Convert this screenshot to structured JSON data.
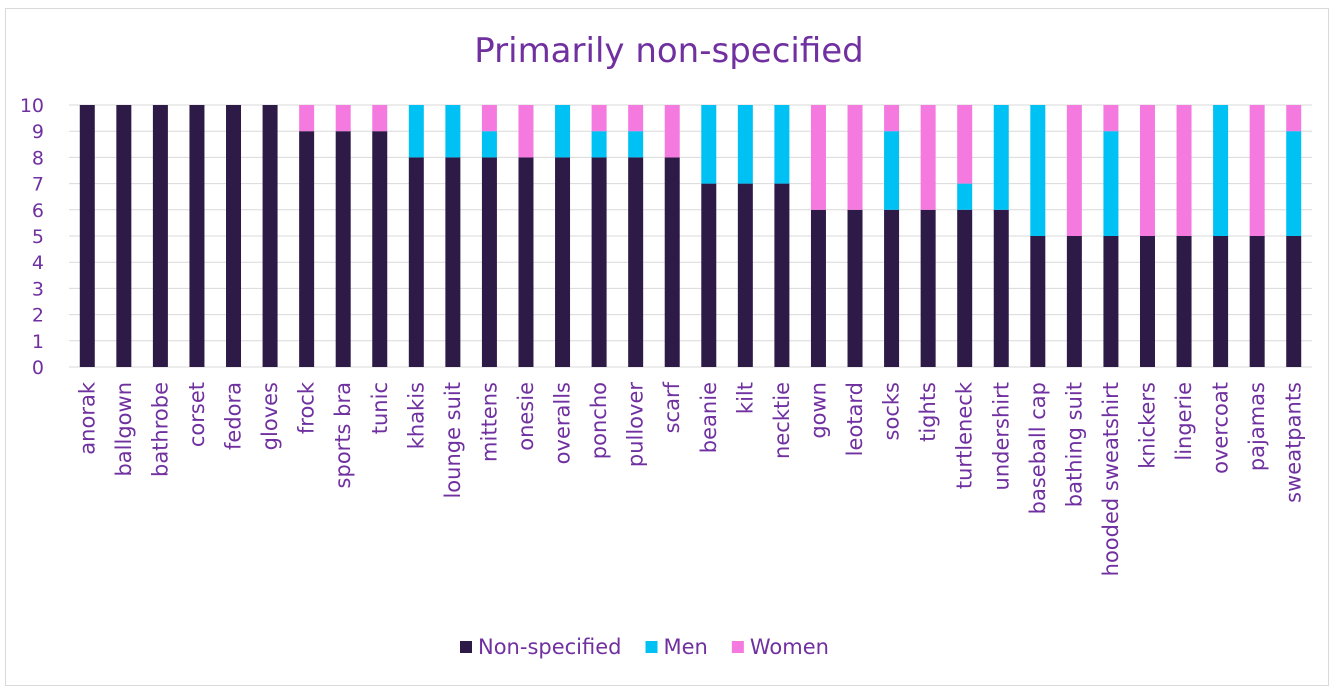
{
  "chart_data": {
    "type": "bar",
    "stacked": true,
    "title": "Primarily non-specified",
    "xlabel": "",
    "ylabel": "",
    "ylim": [
      0,
      10
    ],
    "yticks": [
      0,
      1,
      2,
      3,
      4,
      5,
      6,
      7,
      8,
      9,
      10
    ],
    "grid": true,
    "legend_position": "bottom",
    "categories": [
      "anorak",
      "ballgown",
      "bathrobe",
      "corset",
      "fedora",
      "gloves",
      "frock",
      "sports bra",
      "tunic",
      "khakis",
      "lounge suit",
      "mittens",
      "onesie",
      "overalls",
      "poncho",
      "pullover",
      "scarf",
      "beanie",
      "kilt",
      "necktie",
      "gown",
      "leotard",
      "socks",
      "tights",
      "turtleneck",
      "undershirt",
      "baseball cap",
      "bathing suit",
      "hooded sweatshirt",
      "knickers",
      "lingerie",
      "overcoat",
      "pajamas",
      "sweatpants"
    ],
    "series": [
      {
        "name": "Non-specified",
        "color": "#2e1a47",
        "values": [
          10,
          10,
          10,
          10,
          10,
          10,
          9,
          9,
          9,
          8,
          8,
          8,
          8,
          8,
          8,
          8,
          8,
          7,
          7,
          7,
          6,
          6,
          6,
          6,
          6,
          6,
          5,
          5,
          5,
          5,
          5,
          5,
          5,
          5
        ]
      },
      {
        "name": "Men",
        "color": "#00c1f3",
        "values": [
          0,
          0,
          0,
          0,
          0,
          0,
          0,
          0,
          0,
          2,
          2,
          1,
          0,
          2,
          1,
          1,
          0,
          3,
          3,
          3,
          0,
          0,
          3,
          0,
          1,
          4,
          5,
          0,
          4,
          0,
          0,
          5,
          0,
          4
        ]
      },
      {
        "name": "Women",
        "color": "#f57ae0",
        "values": [
          0,
          0,
          0,
          0,
          0,
          0,
          1,
          1,
          1,
          0,
          0,
          1,
          2,
          0,
          1,
          1,
          2,
          0,
          0,
          0,
          4,
          4,
          1,
          4,
          3,
          0,
          0,
          5,
          1,
          5,
          5,
          0,
          5,
          1
        ]
      }
    ],
    "colors": {
      "title": "#7030a0",
      "text": "#7030a0",
      "grid": "#d9d9d9"
    }
  }
}
